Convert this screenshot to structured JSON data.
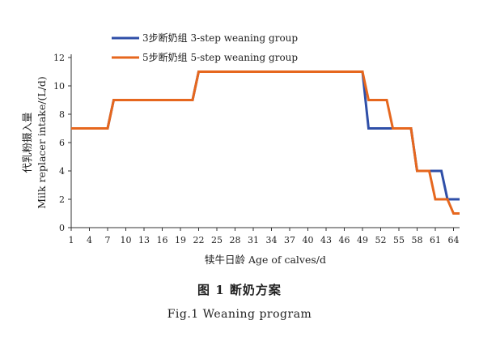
{
  "chart_data": {
    "type": "line",
    "xlabel": "犊牛日龄  Age of calves/d",
    "ylabel": "代乳粉摄入量",
    "ylabel2": "Milk replacer intake/(L/d)",
    "xlim": [
      1,
      65
    ],
    "ylim": [
      0,
      12
    ],
    "x_ticks": [
      1,
      4,
      7,
      10,
      13,
      16,
      19,
      22,
      25,
      28,
      31,
      34,
      37,
      40,
      43,
      46,
      49,
      52,
      55,
      58,
      61,
      64
    ],
    "y_ticks": [
      0,
      2,
      4,
      6,
      8,
      10,
      12
    ],
    "grid": false,
    "legend_position": "top-left",
    "series": [
      {
        "name": "3步断奶组  3-step weaning group",
        "color": "#2f4fa8",
        "points": [
          [
            1,
            7
          ],
          [
            7,
            7
          ],
          [
            8,
            9
          ],
          [
            21,
            9
          ],
          [
            22,
            11
          ],
          [
            49,
            11
          ],
          [
            50,
            7
          ],
          [
            53,
            7
          ],
          [
            54,
            7
          ],
          [
            57,
            7
          ],
          [
            58,
            4
          ],
          [
            61,
            4
          ],
          [
            62,
            4
          ],
          [
            63,
            2
          ],
          [
            65,
            2
          ]
        ]
      },
      {
        "name": "5步断奶组  5-step weaning group",
        "color": "#e6671e",
        "points": [
          [
            1,
            7
          ],
          [
            7,
            7
          ],
          [
            8,
            9
          ],
          [
            21,
            9
          ],
          [
            22,
            11
          ],
          [
            49,
            11
          ],
          [
            50,
            9
          ],
          [
            53,
            9
          ],
          [
            54,
            7
          ],
          [
            57,
            7
          ],
          [
            58,
            4
          ],
          [
            60,
            4
          ],
          [
            61,
            2
          ],
          [
            63,
            2
          ],
          [
            64,
            1
          ],
          [
            65,
            1
          ]
        ]
      }
    ]
  },
  "caption": {
    "cn": "图 1    断奶方案",
    "en": "Fig.1    Weaning program"
  }
}
